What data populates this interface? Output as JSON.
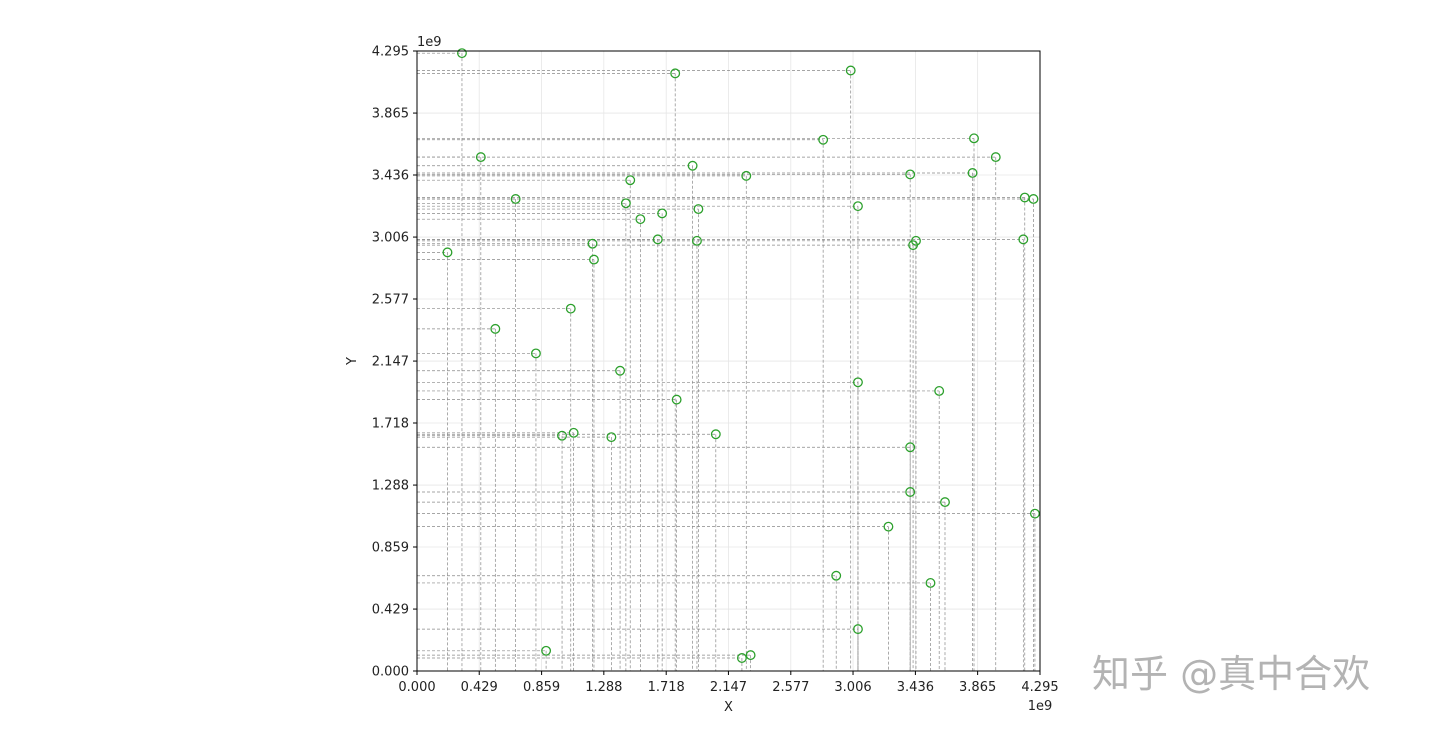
{
  "watermark": "知乎 @真中合欢",
  "chart_data": {
    "type": "scatter",
    "title": "",
    "xlabel": "X",
    "ylabel": "Y",
    "x_exponent_label": "1e9",
    "y_exponent_label": "1e9",
    "xlim": [
      0,
      4.295
    ],
    "ylim": [
      0,
      4.295
    ],
    "xticks": [
      "0.000",
      "0.429",
      "0.859",
      "1.288",
      "1.718",
      "2.147",
      "2.577",
      "3.006",
      "3.436",
      "3.865",
      "4.295"
    ],
    "yticks": [
      "0.000",
      "0.429",
      "0.859",
      "1.288",
      "1.718",
      "2.147",
      "2.577",
      "3.006",
      "3.436",
      "3.865",
      "4.295"
    ],
    "grid": true,
    "marker": "hollow circle",
    "marker_color": "#2ca02c",
    "guide_line_color": "#888888",
    "units": "1e9",
    "points": [
      {
        "x": 0.21,
        "y": 2.9
      },
      {
        "x": 0.31,
        "y": 4.28
      },
      {
        "x": 0.44,
        "y": 3.56
      },
      {
        "x": 0.54,
        "y": 2.37
      },
      {
        "x": 0.68,
        "y": 3.27
      },
      {
        "x": 0.82,
        "y": 2.2
      },
      {
        "x": 0.89,
        "y": 0.14
      },
      {
        "x": 1.0,
        "y": 1.63
      },
      {
        "x": 1.06,
        "y": 2.51
      },
      {
        "x": 1.08,
        "y": 1.65
      },
      {
        "x": 1.21,
        "y": 2.96
      },
      {
        "x": 1.22,
        "y": 2.85
      },
      {
        "x": 1.34,
        "y": 1.62
      },
      {
        "x": 1.4,
        "y": 2.08
      },
      {
        "x": 1.44,
        "y": 3.24
      },
      {
        "x": 1.47,
        "y": 3.4
      },
      {
        "x": 1.54,
        "y": 3.13
      },
      {
        "x": 1.66,
        "y": 2.99
      },
      {
        "x": 1.69,
        "y": 3.17
      },
      {
        "x": 1.78,
        "y": 4.14
      },
      {
        "x": 1.79,
        "y": 1.88
      },
      {
        "x": 1.9,
        "y": 3.5
      },
      {
        "x": 1.93,
        "y": 2.98
      },
      {
        "x": 1.94,
        "y": 3.2
      },
      {
        "x": 2.06,
        "y": 1.64
      },
      {
        "x": 2.24,
        "y": 0.09
      },
      {
        "x": 2.27,
        "y": 3.43
      },
      {
        "x": 2.3,
        "y": 0.11
      },
      {
        "x": 2.8,
        "y": 3.68
      },
      {
        "x": 2.89,
        "y": 0.66
      },
      {
        "x": 2.99,
        "y": 4.16
      },
      {
        "x": 3.04,
        "y": 3.22
      },
      {
        "x": 3.04,
        "y": 2.0
      },
      {
        "x": 3.04,
        "y": 0.29
      },
      {
        "x": 3.25,
        "y": 1.0
      },
      {
        "x": 3.4,
        "y": 3.44
      },
      {
        "x": 3.4,
        "y": 1.55
      },
      {
        "x": 3.4,
        "y": 1.24
      },
      {
        "x": 3.42,
        "y": 2.95
      },
      {
        "x": 3.44,
        "y": 2.98
      },
      {
        "x": 3.54,
        "y": 0.61
      },
      {
        "x": 3.6,
        "y": 1.94
      },
      {
        "x": 3.64,
        "y": 1.17
      },
      {
        "x": 3.83,
        "y": 3.45
      },
      {
        "x": 3.84,
        "y": 3.69
      },
      {
        "x": 3.99,
        "y": 3.56
      },
      {
        "x": 4.18,
        "y": 2.99
      },
      {
        "x": 4.19,
        "y": 3.28
      },
      {
        "x": 4.25,
        "y": 3.27
      },
      {
        "x": 4.26,
        "y": 1.09
      }
    ]
  }
}
